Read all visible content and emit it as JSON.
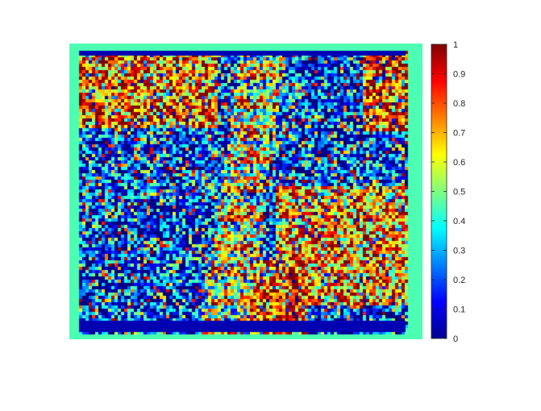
{
  "chart_data": {
    "type": "heatmap",
    "title": "",
    "xlabel": "",
    "ylabel": "",
    "colormap": "jet",
    "clim": [
      0,
      1
    ],
    "colorbar": {
      "location": "right",
      "ticks": [
        0,
        0.1,
        0.2,
        0.3,
        0.4,
        0.5,
        0.6,
        0.7,
        0.8,
        0.9,
        1
      ],
      "tick_labels": [
        "0",
        "0.1",
        "0.2",
        "0.3",
        "0.4",
        "0.5",
        "0.6",
        "0.7",
        "0.8",
        "0.9",
        "1"
      ]
    },
    "axes_visible": false,
    "border_value": 0.45,
    "grid": false
  }
}
